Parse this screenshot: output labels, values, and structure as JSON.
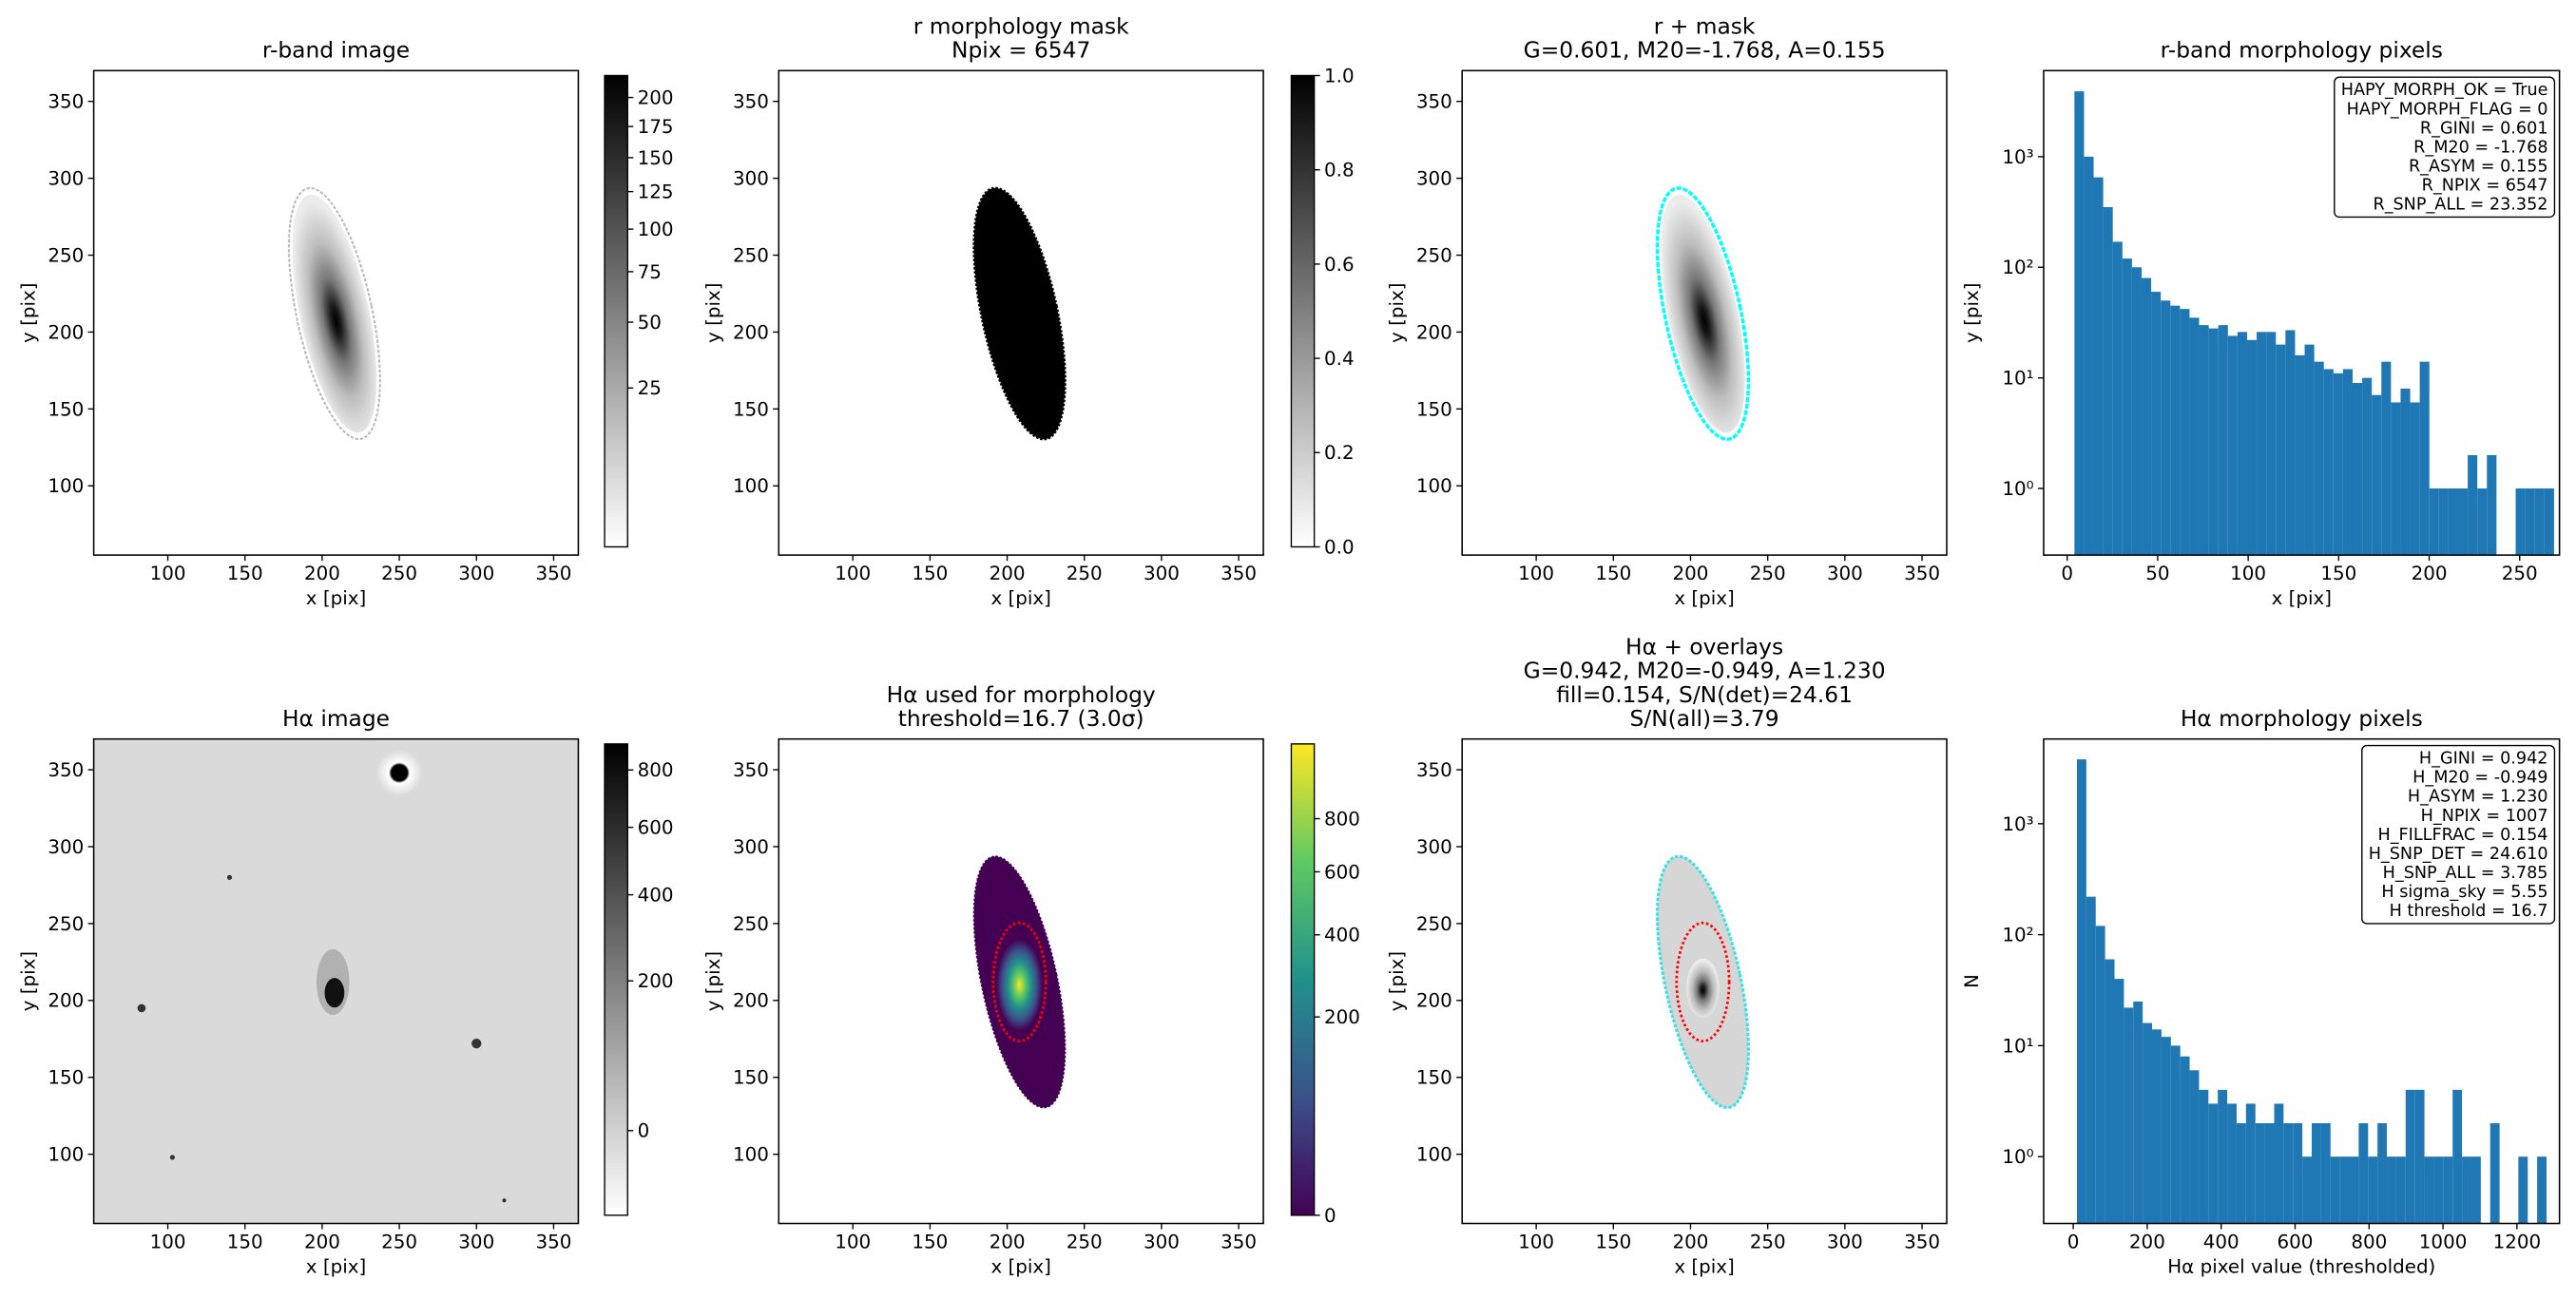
{
  "chart_data": [
    {
      "type": "image",
      "title": [
        "r-band image"
      ],
      "xlabel": "x [pix]",
      "ylabel": "y [pix]",
      "xlim": [
        52,
        366
      ],
      "ylim": [
        55,
        370
      ],
      "xticks": [
        100,
        150,
        200,
        250,
        300,
        350
      ],
      "yticks": [
        100,
        150,
        200,
        250,
        300,
        350
      ],
      "cmap": "gray_r",
      "cscale": "sqrt",
      "clim": [
        0,
        220
      ],
      "cticks": [
        25,
        50,
        75,
        100,
        125,
        150,
        175,
        200
      ]
    },
    {
      "type": "image",
      "title": [
        "r morphology mask",
        "Npix = 6547"
      ],
      "xlabel": "x [pix]",
      "ylabel": "y [pix]",
      "xlim": [
        52,
        366
      ],
      "ylim": [
        55,
        370
      ],
      "xticks": [
        100,
        150,
        200,
        250,
        300,
        350
      ],
      "yticks": [
        100,
        150,
        200,
        250,
        300,
        350
      ],
      "cmap": "gray_r",
      "cscale": "linear",
      "clim": [
        0,
        1
      ],
      "cticks": [
        {
          "value": 0,
          "label": "0.0"
        },
        0.2,
        0.4,
        0.6,
        0.8,
        {
          "value": 1,
          "label": "1.0"
        }
      ]
    },
    {
      "type": "image",
      "title": [
        "r + mask",
        "G=0.601, M20=-1.768, A=0.155"
      ],
      "xlabel": "x [pix]",
      "ylabel": "y [pix]",
      "xlim": [
        52,
        366
      ],
      "ylim": [
        55,
        370
      ],
      "xticks": [
        100,
        150,
        200,
        250,
        300,
        350
      ],
      "yticks": [
        100,
        150,
        200,
        250,
        300,
        350
      ],
      "contour_color": "#00ffff"
    },
    {
      "type": "histogram",
      "title": [
        "r-band morphology pixels"
      ],
      "xlabel": "x [pix]",
      "ylabel": "y [pix]",
      "xlim": [
        -13,
        272
      ],
      "ylim": [
        0.25,
        6000
      ],
      "yscale": "log",
      "color": "#1f77b4",
      "xticks": [
        0,
        50,
        100,
        150,
        200,
        250
      ],
      "yticks": [
        {
          "value": 1,
          "label": "10⁰"
        },
        {
          "value": 10,
          "label": "10¹"
        },
        {
          "value": 100,
          "label": "10²"
        },
        {
          "value": 1000,
          "label": "10³"
        }
      ],
      "bins": [
        4,
        9.3,
        14.6,
        19.9,
        25.2,
        30.5,
        35.8,
        41.1,
        46.4,
        51.7,
        57,
        62.3,
        67.6,
        72.9,
        78.2,
        83.5,
        88.8,
        94.1,
        99.4,
        104.7,
        110,
        115.3,
        120.6,
        125.9,
        131.2,
        136.5,
        141.8,
        147.1,
        152.4,
        157.7,
        163,
        168.3,
        173.6,
        178.9,
        184.2,
        189.5,
        194.8,
        200.1,
        205.4,
        210.7,
        216,
        221.3,
        226.6,
        231.9,
        237.2,
        242.5,
        247.8,
        253.1,
        258.4,
        263.7,
        269
      ],
      "values": [
        3900,
        1000,
        650,
        350,
        170,
        120,
        100,
        80,
        60,
        50,
        45,
        42,
        35,
        30,
        28,
        30,
        24,
        26,
        22,
        26,
        26,
        20,
        27,
        16,
        20,
        14,
        12,
        11,
        12,
        9,
        10,
        7,
        14,
        6,
        8,
        6,
        14,
        1,
        1,
        1,
        1,
        2,
        1,
        2,
        0,
        0,
        1,
        1,
        1,
        1
      ],
      "legend_loc": "upper right",
      "textbox": [
        "HAPY_MORPH_OK = True",
        "HAPY_MORPH_FLAG = 0",
        "R_GINI = 0.601",
        "R_M20 = -1.768",
        "R_ASYM = 0.155",
        "R_NPIX = 6547",
        "R_SNP_ALL = 23.352"
      ]
    },
    {
      "type": "image",
      "title": [
        "Hα image"
      ],
      "xlabel": "x [pix]",
      "ylabel": "y [pix]",
      "xlim": [
        52,
        366
      ],
      "ylim": [
        55,
        370
      ],
      "xticks": [
        100,
        150,
        200,
        250,
        300,
        350
      ],
      "yticks": [
        100,
        150,
        200,
        250,
        300,
        350
      ],
      "cmap": "gray_r",
      "cscale": "sqrt",
      "clim": [
        -30,
        900
      ],
      "cticks": [
        0,
        200,
        400,
        600,
        800
      ]
    },
    {
      "type": "image",
      "title": [
        "Hα used for morphology",
        "threshold=16.7 (3.0σ)"
      ],
      "xlabel": "x [pix]",
      "ylabel": "y [pix]",
      "xlim": [
        52,
        366
      ],
      "ylim": [
        55,
        370
      ],
      "xticks": [
        100,
        150,
        200,
        250,
        300,
        350
      ],
      "yticks": [
        100,
        150,
        200,
        250,
        300,
        350
      ],
      "cmap": "viridis",
      "cscale": "sqrt",
      "clim": [
        0,
        1130
      ],
      "cticks": [
        0,
        200,
        400,
        600,
        800
      ],
      "contour_color": "#ff0000"
    },
    {
      "type": "image",
      "title": [
        "Hα + overlays",
        "G=0.942, M20=-0.949, A=1.230",
        "fill=0.154, S/N(det)=24.61",
        "S/N(all)=3.79"
      ],
      "xlabel": "x [pix]",
      "ylabel": "y [pix]",
      "xlim": [
        52,
        366
      ],
      "ylim": [
        55,
        370
      ],
      "xticks": [
        100,
        150,
        200,
        250,
        300,
        350
      ],
      "yticks": [
        100,
        150,
        200,
        250,
        300,
        350
      ],
      "contour_color": "#40e0e0"
    },
    {
      "type": "histogram",
      "title": [
        "Hα morphology pixels"
      ],
      "xlabel": "Hα pixel value (thresholded)",
      "ylabel": "N",
      "xlim": [
        -80,
        1315
      ],
      "ylim": [
        0.25,
        5800
      ],
      "yscale": "log",
      "color": "#1f77b4",
      "xticks": [
        0,
        200,
        400,
        600,
        800,
        1000,
        1200
      ],
      "yticks": [
        {
          "value": 1,
          "label": "10⁰"
        },
        {
          "value": 10,
          "label": "10¹"
        },
        {
          "value": 100,
          "label": "10²"
        },
        {
          "value": 1000,
          "label": "10³"
        }
      ],
      "bins": [
        10,
        35.4,
        60.8,
        86.2,
        111.6,
        137,
        162.4,
        187.8,
        213.2,
        238.6,
        264,
        289.4,
        314.8,
        340.2,
        365.6,
        391,
        416.4,
        441.8,
        467.2,
        492.6,
        518,
        543.4,
        568.8,
        594.2,
        619.6,
        645,
        670.4,
        695.8,
        721.2,
        746.6,
        772,
        797.4,
        822.8,
        848.2,
        873.6,
        899,
        924.4,
        949.8,
        975.2,
        1000.6,
        1026,
        1051.4,
        1076.8,
        1102.2,
        1127.6,
        1153,
        1178.4,
        1203.8,
        1229.2,
        1254.6,
        1280
      ],
      "values": [
        3800,
        220,
        120,
        60,
        40,
        22,
        25,
        16,
        14,
        12,
        10,
        8,
        6,
        4,
        3,
        4,
        3,
        2,
        3,
        2,
        2,
        3,
        2,
        2,
        1,
        2,
        2,
        1,
        1,
        1,
        2,
        1,
        2,
        1,
        1,
        4,
        4,
        1,
        1,
        1,
        4,
        1,
        1,
        0,
        2,
        0,
        0,
        1,
        0,
        1
      ],
      "legend_loc": "upper right",
      "textbox": [
        "H_GINI = 0.942",
        "H_M20 = -0.949",
        "H_ASYM = 1.230",
        "H_NPIX = 1007",
        "H_FILLFRAC = 0.154",
        "H_SNP_DET = 24.610",
        "H_SNP_ALL = 3.785",
        "H sigma_sky = 5.55",
        "H threshold = 16.7"
      ]
    }
  ]
}
